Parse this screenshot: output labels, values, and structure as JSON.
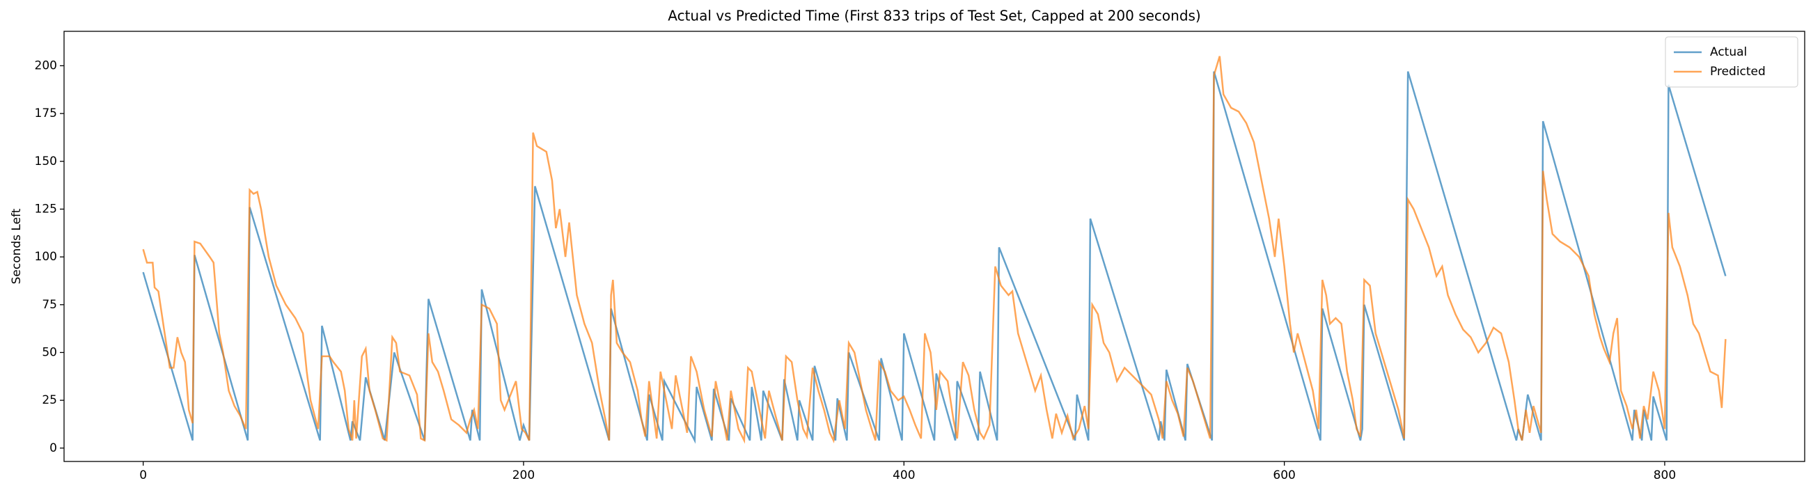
{
  "chart_data": {
    "type": "line",
    "title": "Actual vs Predicted Time (First 833 trips of Test Set, Capped at 200 seconds)",
    "y_label": "Seconds Left",
    "xlim": [
      -41.6,
      873.6
    ],
    "xticks": [
      0,
      200,
      400,
      600,
      800
    ],
    "ylim": [
      -7,
      218
    ],
    "yticks": [
      0,
      25,
      50,
      75,
      100,
      125,
      150,
      175,
      200
    ],
    "grid": false,
    "legend": "upper right",
    "series": [
      {
        "name": "Actual",
        "color": "#1f77b4",
        "x": [
          0,
          26,
          27,
          55,
          56,
          93,
          94,
          109,
          110,
          114,
          117,
          127,
          132,
          148,
          150,
          172,
          173,
          177,
          178,
          198,
          200,
          203,
          206,
          245,
          246,
          265,
          266,
          273,
          274,
          290,
          291,
          299,
          300,
          308,
          309,
          319,
          320,
          325,
          326,
          336,
          337,
          344,
          345,
          352,
          353,
          364,
          365,
          370,
          371,
          387,
          388,
          399,
          400,
          416,
          417,
          427,
          428,
          439,
          440,
          449,
          450,
          490,
          491,
          497,
          498,
          534,
          535,
          537,
          538,
          548,
          549,
          562,
          563,
          619,
          620,
          640,
          641,
          642,
          663,
          665,
          722,
          723,
          725,
          728,
          735,
          736,
          783,
          784,
          788,
          789,
          793,
          794,
          801,
          802,
          832
        ],
        "values": [
          92,
          4,
          101,
          4,
          126,
          4,
          64,
          4,
          14,
          4,
          37,
          4,
          50,
          4,
          78,
          4,
          20,
          4,
          83,
          4,
          12,
          4,
          137,
          4,
          73,
          4,
          28,
          4,
          35,
          4,
          32,
          4,
          31,
          4,
          26,
          4,
          32,
          4,
          30,
          4,
          36,
          4,
          25,
          4,
          43,
          4,
          26,
          4,
          50,
          4,
          47,
          4,
          60,
          4,
          39,
          4,
          35,
          4,
          40,
          4,
          105,
          4,
          28,
          4,
          120,
          4,
          14,
          4,
          41,
          4,
          44,
          4,
          197,
          4,
          73,
          4,
          10,
          75,
          4,
          197,
          4,
          10,
          4,
          28,
          4,
          171,
          4,
          20,
          4,
          20,
          4,
          27,
          4,
          190,
          90
        ]
      },
      {
        "name": "Predicted",
        "color": "#ff7f0e",
        "x": [
          0,
          2,
          5,
          6,
          8,
          11,
          14,
          16,
          18,
          20,
          22,
          24,
          26,
          27,
          30,
          35,
          37,
          40,
          42,
          45,
          48,
          51,
          54,
          56,
          58,
          60,
          62,
          64,
          66,
          70,
          75,
          80,
          84,
          86,
          88,
          92,
          94,
          98,
          100,
          104,
          106,
          108,
          110,
          111,
          112,
          115,
          117,
          119,
          122,
          126,
          128,
          131,
          133,
          135,
          140,
          144,
          146,
          148,
          150,
          152,
          155,
          158,
          162,
          166,
          170,
          172,
          174,
          176,
          178,
          182,
          186,
          188,
          190,
          196,
          199,
          201,
          203,
          205,
          207,
          212,
          215,
          217,
          219,
          222,
          224,
          228,
          232,
          236,
          240,
          243,
          245,
          246,
          247,
          249,
          252,
          256,
          260,
          262,
          264,
          266,
          268,
          270,
          272,
          274,
          278,
          280,
          282,
          286,
          288,
          291,
          295,
          299,
          301,
          304,
          307,
          309,
          313,
          316,
          318,
          320,
          324,
          327,
          329,
          333,
          336,
          338,
          341,
          344,
          347,
          349,
          352,
          355,
          358,
          361,
          363,
          366,
          369,
          371,
          374,
          377,
          380,
          383,
          385,
          387,
          390,
          393,
          397,
          400,
          403,
          406,
          409,
          411,
          414,
          417,
          419,
          423,
          426,
          428,
          431,
          434,
          437,
          440,
          442,
          445,
          448,
          451,
          455,
          457,
          460,
          463,
          466,
          469,
          472,
          475,
          478,
          480,
          483,
          486,
          489,
          492,
          495,
          497,
          499,
          502,
          505,
          508,
          512,
          516,
          520,
          525,
          530,
          534,
          536,
          538,
          541,
          544,
          547,
          549,
          552,
          555,
          558,
          561,
          563,
          566,
          568,
          572,
          576,
          580,
          584,
          588,
          592,
          595,
          597,
          600,
          603,
          605,
          607,
          611,
          615,
          618,
          620,
          622,
          624,
          627,
          630,
          633,
          636,
          638,
          640,
          642,
          645,
          648,
          651,
          654,
          657,
          660,
          663,
          665,
          668,
          672,
          676,
          680,
          683,
          686,
          690,
          694,
          698,
          702,
          706,
          710,
          714,
          718,
          721,
          723,
          725,
          727,
          729,
          731,
          733,
          735,
          736,
          738,
          741,
          745,
          750,
          755,
          760,
          763,
          766,
          768,
          771,
          773,
          775,
          777,
          780,
          783,
          785,
          787,
          789,
          791,
          794,
          797,
          800,
          802,
          804,
          808,
          812,
          815,
          818,
          821,
          824,
          828,
          830,
          832
        ],
        "values": [
          104,
          97,
          97,
          84,
          82,
          62,
          42,
          42,
          58,
          50,
          45,
          20,
          13,
          108,
          107,
          100,
          97,
          60,
          50,
          30,
          22,
          17,
          10,
          135,
          133,
          134,
          125,
          112,
          100,
          85,
          75,
          68,
          60,
          40,
          25,
          10,
          48,
          48,
          45,
          40,
          30,
          10,
          4,
          25,
          5,
          48,
          52,
          30,
          20,
          5,
          4,
          58,
          55,
          40,
          38,
          28,
          5,
          4,
          60,
          45,
          40,
          30,
          15,
          12,
          8,
          15,
          20,
          10,
          75,
          73,
          65,
          25,
          20,
          35,
          10,
          8,
          4,
          165,
          158,
          155,
          140,
          115,
          125,
          100,
          118,
          80,
          65,
          55,
          30,
          15,
          4,
          80,
          88,
          55,
          50,
          45,
          30,
          15,
          6,
          35,
          20,
          5,
          40,
          30,
          10,
          38,
          28,
          8,
          48,
          40,
          20,
          6,
          35,
          20,
          4,
          30,
          10,
          4,
          42,
          40,
          20,
          5,
          30,
          15,
          4,
          48,
          45,
          25,
          10,
          6,
          42,
          30,
          20,
          8,
          4,
          25,
          10,
          55,
          50,
          35,
          20,
          10,
          4,
          45,
          40,
          30,
          25,
          27,
          20,
          12,
          5,
          60,
          50,
          20,
          40,
          35,
          15,
          5,
          45,
          38,
          20,
          8,
          5,
          12,
          95,
          85,
          80,
          82,
          60,
          50,
          40,
          30,
          38,
          20,
          5,
          18,
          8,
          17,
          5,
          10,
          22,
          10,
          75,
          70,
          55,
          50,
          35,
          42,
          38,
          33,
          28,
          15,
          5,
          35,
          25,
          18,
          6,
          42,
          35,
          25,
          15,
          5,
          195,
          205,
          185,
          178,
          176,
          170,
          160,
          140,
          120,
          100,
          120,
          95,
          65,
          50,
          60,
          45,
          30,
          10,
          88,
          80,
          65,
          68,
          65,
          40,
          25,
          10,
          6,
          88,
          85,
          60,
          50,
          40,
          30,
          20,
          5,
          130,
          125,
          115,
          105,
          90,
          95,
          80,
          70,
          62,
          58,
          50,
          55,
          63,
          60,
          45,
          25,
          10,
          4,
          20,
          8,
          22,
          15,
          8,
          145,
          130,
          112,
          108,
          105,
          100,
          90,
          70,
          58,
          52,
          45,
          60,
          68,
          30,
          22,
          10,
          20,
          5,
          22,
          15,
          40,
          30,
          10,
          123,
          105,
          95,
          80,
          65,
          60,
          50,
          40,
          38,
          21,
          57
        ]
      }
    ]
  }
}
